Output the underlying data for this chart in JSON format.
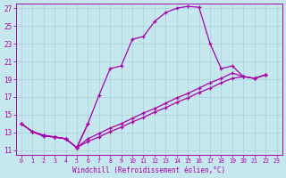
{
  "xlabel": "Windchill (Refroidissement éolien,°C)",
  "xlim": [
    -0.5,
    23.5
  ],
  "ylim": [
    10.5,
    27.5
  ],
  "xticks": [
    0,
    1,
    2,
    3,
    4,
    5,
    6,
    7,
    8,
    9,
    10,
    11,
    12,
    13,
    14,
    15,
    16,
    17,
    18,
    19,
    20,
    21,
    22,
    23
  ],
  "yticks": [
    11,
    13,
    15,
    17,
    19,
    21,
    23,
    25,
    27
  ],
  "bg_color": "#c5e8ef",
  "line_color": "#aa00aa",
  "grid_color": "#aad0d8",
  "line1_x": [
    0,
    1,
    2,
    3,
    4,
    5,
    6,
    7,
    8,
    9,
    10,
    11,
    12,
    13,
    14,
    15,
    16,
    17,
    18,
    19,
    20,
    21,
    22
  ],
  "line1_y": [
    14.0,
    13.1,
    12.6,
    12.5,
    12.3,
    11.3,
    14.0,
    17.2,
    20.2,
    20.5,
    23.5,
    23.8,
    25.5,
    26.5,
    27.0,
    27.2,
    27.1,
    23.0,
    20.2,
    20.5,
    19.3,
    19.1,
    19.5
  ],
  "line2_x": [
    0,
    1,
    2,
    3,
    4,
    5,
    6,
    7,
    8,
    9,
    10,
    11,
    12,
    13,
    14,
    15,
    16,
    17,
    18,
    19,
    20,
    21,
    22
  ],
  "line2_y": [
    14.0,
    13.1,
    12.7,
    12.5,
    12.3,
    11.3,
    12.3,
    12.9,
    13.5,
    14.0,
    14.6,
    15.2,
    15.7,
    16.3,
    16.9,
    17.4,
    18.0,
    18.6,
    19.1,
    19.7,
    19.3,
    19.1,
    19.5
  ],
  "line3_x": [
    0,
    1,
    2,
    3,
    4,
    5,
    6,
    7,
    8,
    9,
    10,
    11,
    12,
    13,
    14,
    15,
    16,
    17,
    18,
    19,
    20,
    21,
    22
  ],
  "line3_y": [
    14.0,
    13.1,
    12.7,
    12.5,
    12.3,
    11.3,
    12.0,
    12.5,
    13.1,
    13.6,
    14.2,
    14.7,
    15.3,
    15.8,
    16.4,
    16.9,
    17.5,
    18.0,
    18.6,
    19.1,
    19.3,
    19.1,
    19.5
  ],
  "line4_x": [
    1,
    2,
    3,
    4,
    5,
    6
  ],
  "line4_y": [
    13.1,
    12.6,
    12.5,
    12.3,
    11.3,
    14.0
  ]
}
